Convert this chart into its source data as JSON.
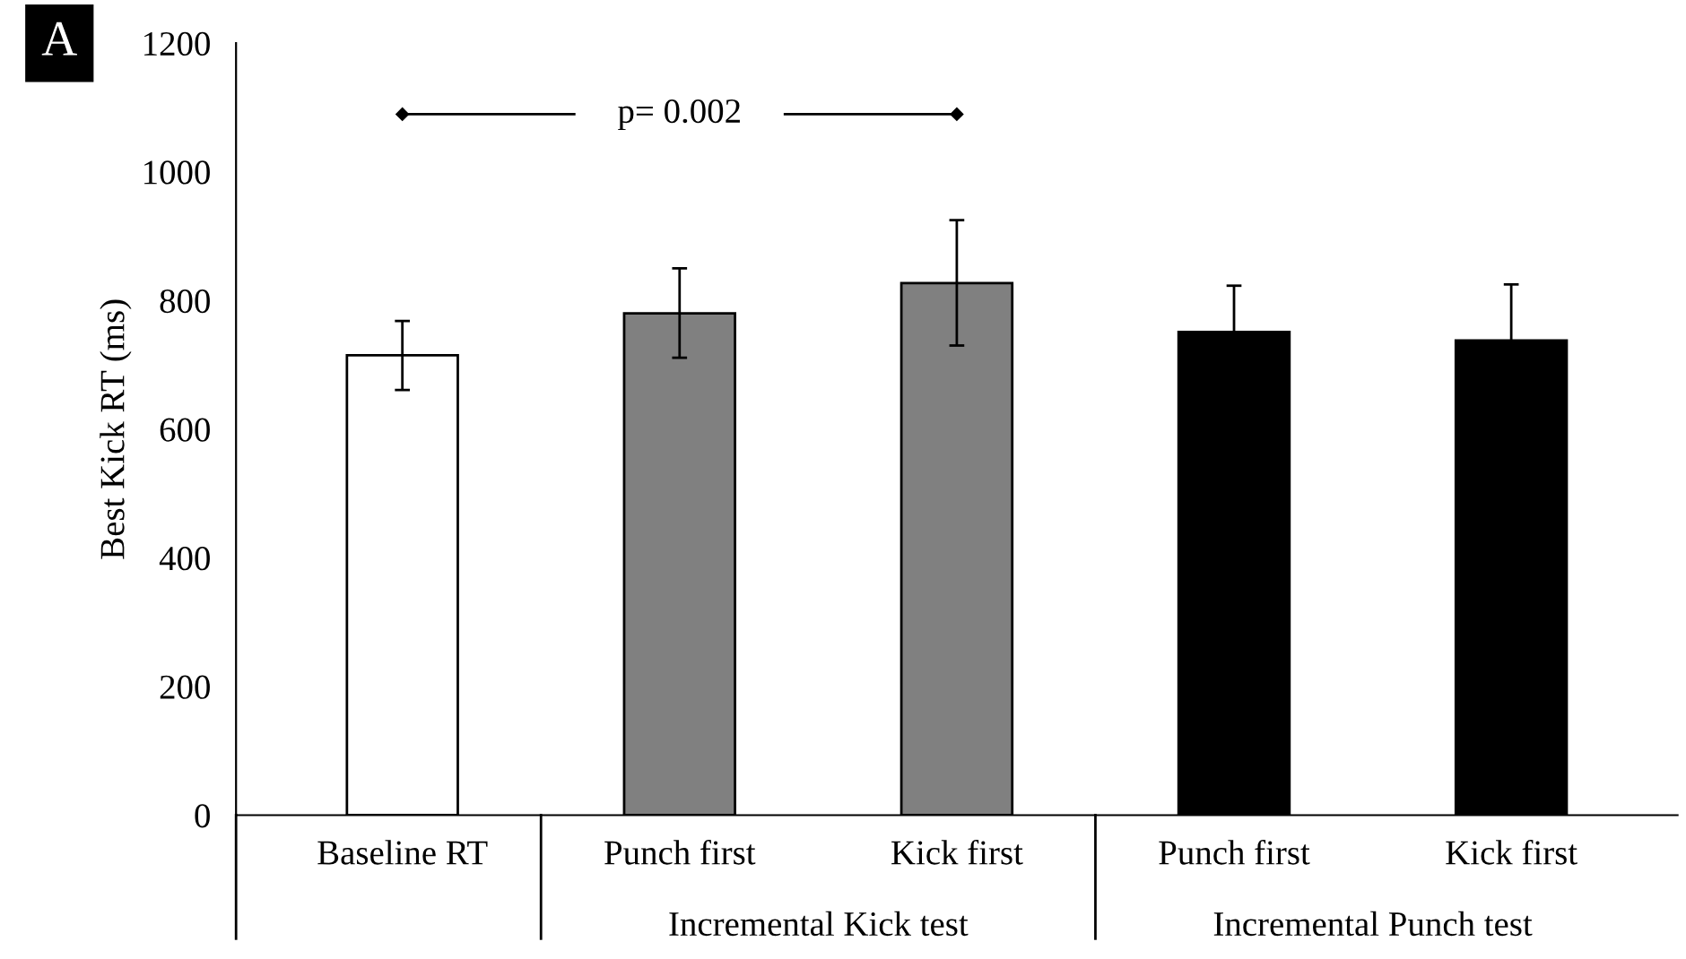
{
  "chart_data": {
    "type": "bar",
    "title": "A",
    "ylabel": "Best Kick RT (ms)",
    "categories": [
      "Baseline RT",
      "Punch first",
      "Kick first",
      "Punch first",
      "Kick first"
    ],
    "values": [
      715,
      780,
      827,
      751,
      738
    ],
    "colors": [
      "#ffffff",
      "#808080",
      "#808080",
      "#000000",
      "#000000"
    ],
    "errors": [
      [
        661,
        768
      ],
      [
        711,
        850
      ],
      [
        730,
        925
      ],
      72,
      87
    ],
    "ylim": [
      0,
      1200
    ],
    "yticks": [
      0,
      200,
      400,
      600,
      800,
      1000,
      1200
    ],
    "grid": false,
    "annotations": [
      "p= 0.002",
      "Incremental Kick test",
      "Incremental Punch test"
    ]
  }
}
